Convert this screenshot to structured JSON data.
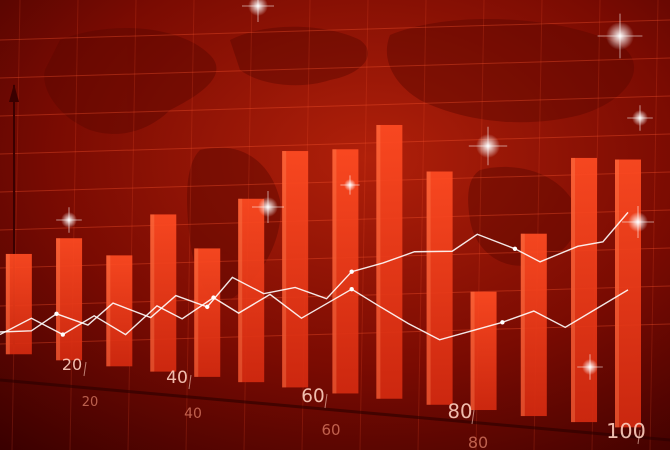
{
  "chart_data": {
    "type": "bar",
    "title": "",
    "xlabel": "",
    "ylabel": "",
    "grid": true,
    "xlim": [
      0,
      110
    ],
    "categories": [],
    "series": [
      {
        "name": "bars",
        "kind": "bar",
        "x": [
          3,
          11,
          19,
          26,
          33,
          40,
          47,
          55,
          62,
          70,
          77,
          85,
          93,
          100
        ],
        "values": [
          0.31,
          0.37,
          0.33,
          0.46,
          0.37,
          0.52,
          0.66,
          0.67,
          0.74,
          0.62,
          0.31,
          0.47,
          0.67,
          0.67
        ]
      },
      {
        "name": "line-upper",
        "kind": "line",
        "x": [
          0,
          5,
          9,
          14,
          18,
          24,
          28,
          33,
          37,
          42,
          47,
          52,
          56,
          61,
          66,
          72,
          76,
          82,
          86,
          92,
          96,
          100
        ],
        "values": [
          0.08,
          0.1,
          0.18,
          0.15,
          0.25,
          0.21,
          0.31,
          0.28,
          0.41,
          0.36,
          0.4,
          0.37,
          0.49,
          0.54,
          0.6,
          0.62,
          0.7,
          0.66,
          0.62,
          0.7,
          0.73,
          0.86
        ]
      },
      {
        "name": "line-lower",
        "kind": "line",
        "x": [
          0,
          5,
          10,
          15,
          20,
          25,
          29,
          34,
          38,
          43,
          48,
          52,
          56,
          60,
          65,
          70,
          75,
          80,
          85,
          90,
          95,
          100
        ],
        "values": [
          0.07,
          0.15,
          0.1,
          0.19,
          0.13,
          0.26,
          0.22,
          0.32,
          0.27,
          0.36,
          0.28,
          0.35,
          0.42,
          0.37,
          0.31,
          0.26,
          0.31,
          0.36,
          0.42,
          0.37,
          0.46,
          0.55
        ]
      }
    ],
    "axes": [
      {
        "name": "front",
        "ticks": [
          20,
          40,
          60,
          80,
          100
        ],
        "tick_labels": [
          "20",
          "40",
          "60",
          "80",
          "100"
        ]
      },
      {
        "name": "back",
        "ticks": [
          20,
          40,
          60,
          80
        ],
        "tick_labels": [
          "20",
          "40",
          "60",
          "80"
        ]
      }
    ],
    "colors": {
      "bar": "#e8361a",
      "bar_highlight": "#ff5a2a",
      "line": "#ffffff",
      "background": "#8a0a02"
    }
  }
}
